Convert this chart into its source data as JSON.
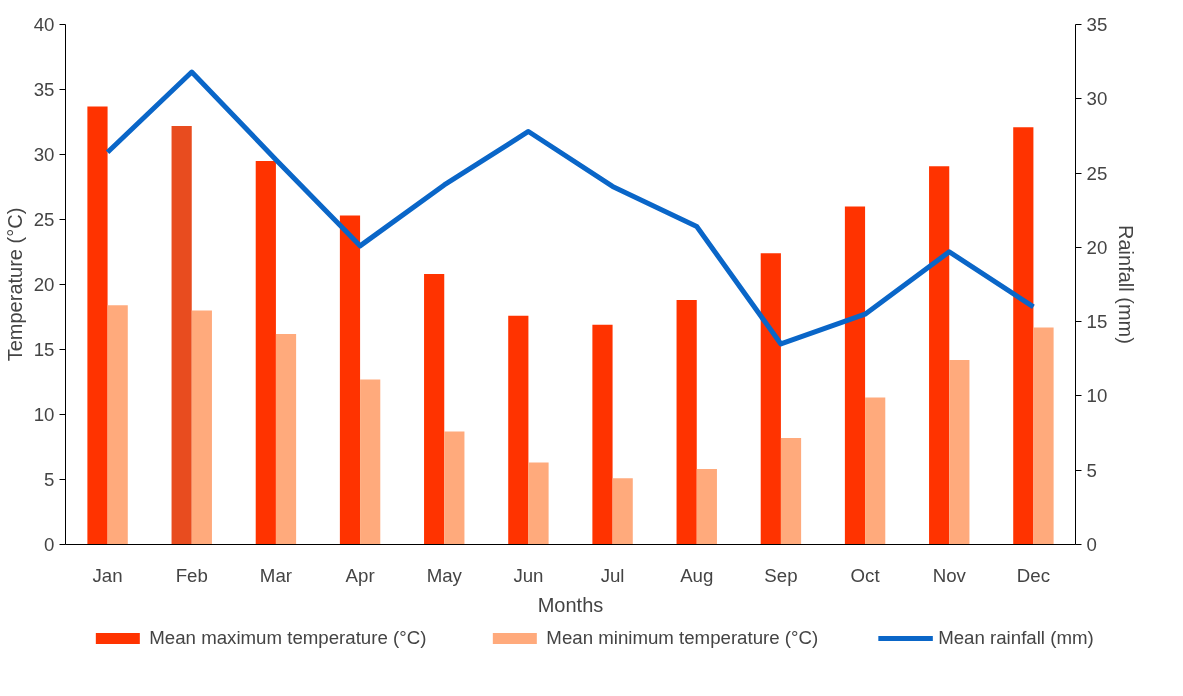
{
  "chart_data": {
    "type": "bar",
    "xlabel": "Months",
    "ylabel": "Temperature (°C)",
    "y2label": "Rainfall (mm)",
    "categories": [
      "Jan",
      "Feb",
      "Mar",
      "Apr",
      "May",
      "Jun",
      "Jul",
      "Aug",
      "Sep",
      "Oct",
      "Nov",
      "Dec"
    ],
    "series": [
      {
        "name": "Mean maximum temperature (°C)",
        "color": "#ff3300",
        "colors": [
          "#ff3300",
          "#e84c1f",
          "#ff3300",
          "#ff3300",
          "#ff3300",
          "#ff3300",
          "#ff3300",
          "#ff3300",
          "#ff3300",
          "#ff3300",
          "#ff3300",
          "#ff3300"
        ],
        "values": [
          33.7,
          32.2,
          29.5,
          25.3,
          20.8,
          17.6,
          16.9,
          18.8,
          22.4,
          26.0,
          29.1,
          32.1
        ]
      },
      {
        "name": "Mean minimum temperature (°C)",
        "color": "#ffaa7c",
        "values": [
          18.4,
          18.0,
          16.2,
          12.7,
          8.7,
          6.3,
          5.1,
          5.8,
          8.2,
          11.3,
          14.2,
          16.7
        ]
      },
      {
        "name": "Mean rainfall (mm)",
        "type": "line",
        "axis": "y2",
        "color": "#0a66c8",
        "values": [
          26.4,
          31.8,
          25.9,
          20.1,
          24.2,
          27.8,
          24.1,
          21.4,
          13.5,
          15.5,
          19.7,
          16.0
        ]
      }
    ],
    "ylim": [
      0,
      40
    ],
    "yticks": [
      0,
      5,
      10,
      15,
      20,
      25,
      30,
      35,
      40
    ],
    "y2lim": [
      0,
      35
    ],
    "y2ticks": [
      0,
      5,
      10,
      15,
      20,
      25,
      30,
      35
    ],
    "grid": false,
    "legend": "bottom",
    "marker": "none",
    "line_style": "solid"
  }
}
